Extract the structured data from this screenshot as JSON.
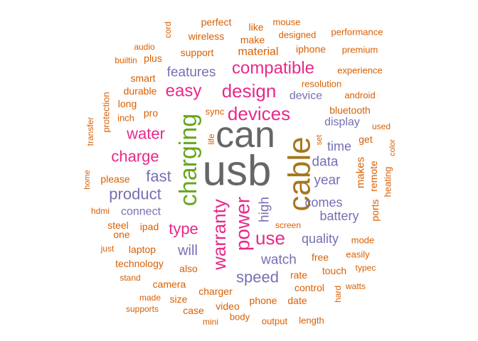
{
  "colors": {
    "orange": "#d95f02",
    "purple": "#7570b3",
    "magenta": "#e7298a",
    "green": "#66a61e",
    "gold": "#a6761d",
    "gray": "#666666",
    "background": "#ffffff"
  },
  "words": [
    {
      "text": "usb",
      "color": "gray"
    },
    {
      "text": "can",
      "color": "gray"
    },
    {
      "text": "cable",
      "color": "gold"
    },
    {
      "text": "charging",
      "color": "green"
    },
    {
      "text": "power",
      "color": "magenta"
    },
    {
      "text": "warranty",
      "color": "magenta"
    },
    {
      "text": "devices",
      "color": "magenta"
    },
    {
      "text": "design",
      "color": "magenta"
    },
    {
      "text": "compatible",
      "color": "magenta"
    },
    {
      "text": "easy",
      "color": "magenta"
    },
    {
      "text": "use",
      "color": "magenta"
    },
    {
      "text": "charge",
      "color": "magenta"
    },
    {
      "text": "water",
      "color": "magenta"
    },
    {
      "text": "type",
      "color": "magenta"
    },
    {
      "text": "fast",
      "color": "purple"
    },
    {
      "text": "product",
      "color": "purple"
    },
    {
      "text": "speed",
      "color": "purple"
    },
    {
      "text": "features",
      "color": "purple"
    },
    {
      "text": "high",
      "color": "purple"
    },
    {
      "text": "will",
      "color": "purple"
    },
    {
      "text": "watch",
      "color": "purple"
    },
    {
      "text": "data",
      "color": "purple"
    },
    {
      "text": "year",
      "color": "purple"
    },
    {
      "text": "time",
      "color": "purple"
    },
    {
      "text": "quality",
      "color": "purple"
    },
    {
      "text": "battery",
      "color": "purple"
    },
    {
      "text": "comes",
      "color": "purple"
    },
    {
      "text": "display",
      "color": "purple"
    },
    {
      "text": "device",
      "color": "purple"
    },
    {
      "text": "connect",
      "color": "purple"
    },
    {
      "text": "makes",
      "color": "orange"
    },
    {
      "text": "material",
      "color": "orange"
    },
    {
      "text": "support",
      "color": "orange"
    },
    {
      "text": "iphone",
      "color": "orange"
    },
    {
      "text": "wireless",
      "color": "orange"
    },
    {
      "text": "perfect",
      "color": "orange"
    },
    {
      "text": "like",
      "color": "orange"
    },
    {
      "text": "make",
      "color": "orange"
    },
    {
      "text": "mouse",
      "color": "orange"
    },
    {
      "text": "designed",
      "color": "orange"
    },
    {
      "text": "performance",
      "color": "orange"
    },
    {
      "text": "premium",
      "color": "orange"
    },
    {
      "text": "experience",
      "color": "orange"
    },
    {
      "text": "resolution",
      "color": "orange"
    },
    {
      "text": "android",
      "color": "orange"
    },
    {
      "text": "bluetooth",
      "color": "orange"
    },
    {
      "text": "used",
      "color": "orange"
    },
    {
      "text": "color",
      "color": "orange"
    },
    {
      "text": "get",
      "color": "orange"
    },
    {
      "text": "remote",
      "color": "orange"
    },
    {
      "text": "heating",
      "color": "orange"
    },
    {
      "text": "ports",
      "color": "orange"
    },
    {
      "text": "mode",
      "color": "orange"
    },
    {
      "text": "easily",
      "color": "orange"
    },
    {
      "text": "typec",
      "color": "orange"
    },
    {
      "text": "watts",
      "color": "orange"
    },
    {
      "text": "touch",
      "color": "orange"
    },
    {
      "text": "free",
      "color": "orange"
    },
    {
      "text": "rate",
      "color": "orange"
    },
    {
      "text": "control",
      "color": "orange"
    },
    {
      "text": "hard",
      "color": "orange"
    },
    {
      "text": "date",
      "color": "orange"
    },
    {
      "text": "phone",
      "color": "orange"
    },
    {
      "text": "length",
      "color": "orange"
    },
    {
      "text": "output",
      "color": "orange"
    },
    {
      "text": "body",
      "color": "orange"
    },
    {
      "text": "video",
      "color": "orange"
    },
    {
      "text": "mini",
      "color": "orange"
    },
    {
      "text": "charger",
      "color": "orange"
    },
    {
      "text": "case",
      "color": "orange"
    },
    {
      "text": "size",
      "color": "orange"
    },
    {
      "text": "supports",
      "color": "orange"
    },
    {
      "text": "made",
      "color": "orange"
    },
    {
      "text": "camera",
      "color": "orange"
    },
    {
      "text": "stand",
      "color": "orange"
    },
    {
      "text": "also",
      "color": "orange"
    },
    {
      "text": "technology",
      "color": "orange"
    },
    {
      "text": "laptop",
      "color": "orange"
    },
    {
      "text": "just",
      "color": "orange"
    },
    {
      "text": "one",
      "color": "orange"
    },
    {
      "text": "ipad",
      "color": "orange"
    },
    {
      "text": "steel",
      "color": "orange"
    },
    {
      "text": "hdmi",
      "color": "orange"
    },
    {
      "text": "home",
      "color": "orange"
    },
    {
      "text": "please",
      "color": "orange"
    },
    {
      "text": "transfer",
      "color": "orange"
    },
    {
      "text": "protection",
      "color": "orange"
    },
    {
      "text": "inch",
      "color": "orange"
    },
    {
      "text": "long",
      "color": "orange"
    },
    {
      "text": "pro",
      "color": "orange"
    },
    {
      "text": "durable",
      "color": "orange"
    },
    {
      "text": "smart",
      "color": "orange"
    },
    {
      "text": "builtin",
      "color": "orange"
    },
    {
      "text": "plus",
      "color": "orange"
    },
    {
      "text": "audio",
      "color": "orange"
    },
    {
      "text": "cord",
      "color": "orange"
    },
    {
      "text": "sync",
      "color": "orange"
    },
    {
      "text": "life",
      "color": "orange"
    },
    {
      "text": "set",
      "color": "orange"
    },
    {
      "text": "screen",
      "color": "orange"
    }
  ]
}
